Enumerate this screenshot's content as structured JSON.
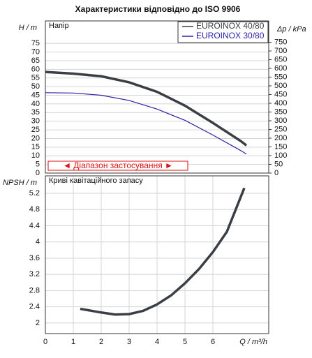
{
  "chart_data": [
    {
      "type": "line",
      "title": "Характеристики відповідно до ISO 9906",
      "panel_label": "Напір",
      "y_label": "H / m",
      "y2_label": "Δp / kPa",
      "annotation": "◄ Діапазон застосування ►",
      "xlim": [
        0,
        8
      ],
      "ylim": [
        0,
        88
      ],
      "yticks": [
        0,
        5,
        10,
        15,
        20,
        25,
        30,
        35,
        40,
        45,
        50,
        55,
        60,
        65,
        70,
        75
      ],
      "y2lim": [
        0,
        872
      ],
      "y2ticks": [
        0,
        50,
        100,
        150,
        200,
        250,
        300,
        350,
        400,
        450,
        500,
        550,
        600,
        650,
        700,
        750
      ],
      "grid": true,
      "legend": "top-right",
      "series": [
        {
          "name": "EUROINOX 40/80",
          "color": "#3a3f46",
          "x": [
            0,
            1,
            2,
            3,
            4,
            5,
            6,
            7,
            7.2
          ],
          "values": [
            58.5,
            57.5,
            56,
            52.5,
            47,
            39,
            29,
            18.5,
            16
          ]
        },
        {
          "name": "EUROINOX 30/80",
          "color": "#2a1fa8",
          "x": [
            0,
            1,
            2,
            3,
            4,
            5,
            6,
            7,
            7.2
          ],
          "values": [
            46.5,
            46.3,
            45,
            42,
            37,
            30.5,
            22,
            13,
            11
          ]
        }
      ]
    },
    {
      "type": "line",
      "panel_label": "Криві кавітаційного запасу",
      "y_label": "NPSH / m",
      "x_label": "Q / m³/h",
      "xlim": [
        0,
        8
      ],
      "xticks": [
        0,
        1,
        2,
        3,
        4,
        5,
        6
      ],
      "ylim": [
        1.74,
        5.63
      ],
      "yticks": [
        2,
        2.4,
        2.8,
        3.2,
        3.6,
        4,
        4.4,
        4.8,
        5.2
      ],
      "grid": true,
      "series": [
        {
          "color": "#3a3f46",
          "x": [
            1.25,
            2,
            2.5,
            3,
            3.5,
            4,
            4.5,
            5,
            5.5,
            6,
            6.5,
            7.125
          ],
          "values": [
            2.35,
            2.26,
            2.21,
            2.22,
            2.3,
            2.46,
            2.68,
            2.98,
            3.33,
            3.75,
            4.25,
            5.33
          ]
        }
      ]
    }
  ]
}
